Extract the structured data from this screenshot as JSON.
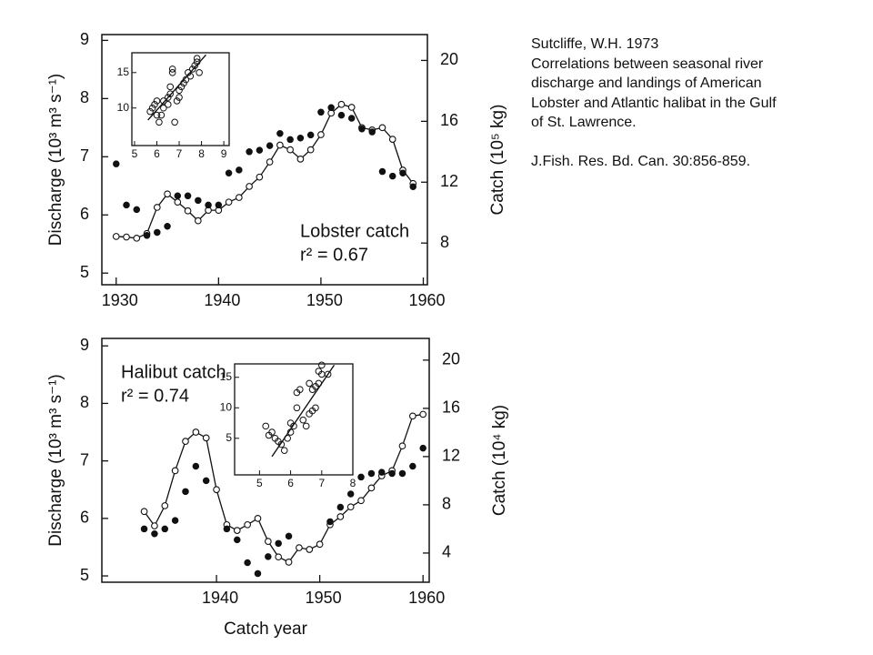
{
  "chart_data": [
    {
      "type": "line",
      "xlim": [
        1928.6,
        1960.4
      ],
      "xticks": [
        1930,
        1940,
        1950,
        1960
      ],
      "ylim": [
        4.8,
        9.1
      ],
      "yticks": [
        5,
        6,
        7,
        8,
        9
      ],
      "y2lim": [
        5.26,
        21.7
      ],
      "y2ticks": [
        8,
        12,
        16,
        20
      ],
      "ylabel": "Discharge (10³ m³ s⁻¹)",
      "y2label": "Catch (10⁵ kg)",
      "annotation": [
        "Lobster catch",
        "r² = 0.67"
      ],
      "series": [
        {
          "marker": "open",
          "line": true,
          "x": [
            1930,
            1931,
            1932,
            1933,
            1934,
            1935,
            1936,
            1937,
            1938,
            1939,
            1940,
            1941,
            1942,
            1943,
            1944,
            1945,
            1946,
            1947,
            1948,
            1949,
            1950,
            1951,
            1952,
            1953,
            1954,
            1955,
            1956,
            1957,
            1958,
            1959
          ],
          "values": [
            5.63,
            5.62,
            5.6,
            5.68,
            6.13,
            6.36,
            6.22,
            6.07,
            5.9,
            6.08,
            6.08,
            6.22,
            6.3,
            6.49,
            6.65,
            6.91,
            7.2,
            7.12,
            6.96,
            7.12,
            7.38,
            7.75,
            7.9,
            7.85,
            7.5,
            7.46,
            7.5,
            7.3,
            6.77,
            6.54
          ]
        },
        {
          "marker": "filled",
          "axis": "y2",
          "x": [
            1930,
            1931,
            1932,
            1933,
            1934,
            1935,
            1936,
            1937,
            1938,
            1939,
            1940,
            1941,
            1942,
            1943,
            1944,
            1945,
            1946,
            1947,
            1948,
            1949,
            1950,
            1951,
            1952,
            1953,
            1954,
            1955,
            1956,
            1957,
            1958,
            1959
          ],
          "values": [
            13.2,
            10.5,
            10.2,
            8.5,
            8.7,
            9.1,
            11.1,
            11.1,
            10.8,
            10.5,
            10.5,
            12.6,
            12.8,
            14.0,
            14.1,
            14.4,
            15.2,
            14.8,
            14.9,
            15.1,
            16.6,
            16.9,
            16.4,
            16.2,
            15.5,
            15.3,
            12.7,
            12.4,
            12.6,
            11.7
          ]
        }
      ],
      "inset": {
        "type": "scatter",
        "xlim": [
          4.88,
          9.24
        ],
        "ylim": [
          4.7,
          17.8
        ],
        "xticks": [
          5,
          6,
          7,
          8,
          9
        ],
        "yticks": [
          10,
          15
        ],
        "x": [
          5.7,
          5.8,
          5.9,
          6.0,
          6.0,
          6.1,
          6.2,
          6.3,
          6.3,
          6.5,
          6.5,
          6.6,
          6.6,
          6.7,
          6.7,
          6.8,
          6.9,
          7.0,
          7.0,
          7.1,
          7.2,
          7.3,
          7.4,
          7.5,
          7.6,
          7.7,
          7.8,
          7.8,
          7.9
        ],
        "y": [
          9.5,
          10,
          10.5,
          11,
          9,
          8,
          9,
          10,
          11,
          10.5,
          11.5,
          12,
          13,
          15,
          15.5,
          8,
          11,
          11.5,
          12.5,
          13,
          13.5,
          14,
          15,
          14.5,
          15.5,
          16,
          17,
          16.5,
          15
        ],
        "fit": {
          "x": [
            5.6,
            8.2
          ],
          "y": [
            8.3,
            17.5
          ]
        }
      }
    },
    {
      "type": "line",
      "xlim": [
        1928.9,
        1960.6
      ],
      "xticks": [
        1940,
        1950,
        1960
      ],
      "ylim": [
        4.89,
        9.13
      ],
      "yticks": [
        5,
        6,
        7,
        8,
        9
      ],
      "y2lim": [
        1.58,
        21.8
      ],
      "y2ticks": [
        4,
        8,
        12,
        16,
        20
      ],
      "xlabel": "Catch year",
      "ylabel": "Discharge (10³ m³ s⁻¹)",
      "y2label": "Catch (10⁴ kg)",
      "annotation": [
        "Halibut catch",
        "r² = 0.74"
      ],
      "series": [
        {
          "marker": "open",
          "line": true,
          "x": [
            1933,
            1934,
            1935,
            1936,
            1937,
            1938,
            1939,
            1940,
            1941,
            1942,
            1943,
            1944,
            1945,
            1946,
            1947,
            1948,
            1949,
            1950,
            1951,
            1952,
            1953,
            1954,
            1955,
            1956,
            1957,
            1958,
            1959,
            1960
          ],
          "values": [
            6.12,
            5.87,
            6.22,
            6.83,
            7.34,
            7.5,
            7.4,
            6.5,
            5.89,
            5.79,
            5.89,
            6.0,
            5.6,
            5.33,
            5.24,
            5.49,
            5.46,
            5.55,
            5.89,
            6.03,
            6.2,
            6.31,
            6.53,
            6.74,
            6.83,
            7.26,
            7.78,
            7.81
          ]
        },
        {
          "marker": "filled",
          "axis": "y2",
          "x": [
            1933,
            1934,
            1935,
            1936,
            1937,
            1938,
            1939,
            1941,
            1942,
            1943,
            1944,
            1945,
            1946,
            1947,
            1951,
            1952,
            1953,
            1954,
            1955,
            1956,
            1957,
            1958,
            1959,
            1960
          ],
          "values": [
            6.0,
            5.6,
            6.0,
            6.7,
            9.1,
            11.2,
            10.0,
            6.0,
            5.1,
            3.2,
            2.3,
            3.7,
            4.8,
            5.4,
            6.6,
            7.8,
            8.9,
            10.3,
            10.6,
            10.7,
            10.6,
            10.6,
            11.2,
            12.7
          ]
        }
      ],
      "inset": {
        "type": "scatter",
        "xlim": [
          4.2,
          8
        ],
        "ylim": [
          -1,
          17.2
        ],
        "xticks": [
          5,
          6,
          7,
          8
        ],
        "yticks": [
          5,
          10,
          15
        ],
        "x": [
          5.2,
          5.4,
          5.5,
          5.6,
          5.7,
          5.8,
          5.9,
          6.0,
          6.0,
          6.1,
          6.2,
          6.2,
          6.3,
          6.5,
          6.6,
          6.6,
          6.7,
          6.7,
          6.8,
          6.8,
          6.9,
          6.9,
          7.0,
          7.0,
          7.2,
          6.4,
          5.3
        ],
        "y": [
          7,
          6,
          5,
          4.5,
          4,
          3,
          5,
          6,
          7.5,
          7,
          10,
          12.5,
          13,
          7,
          14,
          9,
          13,
          9.5,
          10,
          13.5,
          14,
          16,
          17,
          15.5,
          15.5,
          8,
          5.5
        ],
        "fit": {
          "x": [
            5.4,
            7.4
          ],
          "y": [
            2,
            17
          ]
        }
      }
    }
  ],
  "citation": {
    "author": "Sutcliffe, W.H. 1973",
    "lines": [
      "Correlations between seasonal river",
      "discharge and landings of American",
      "Lobster and Atlantic halibat in the Gulf",
      "of St. Lawrence."
    ],
    "journal": "J.Fish. Res. Bd. Can. 30:856-859."
  }
}
